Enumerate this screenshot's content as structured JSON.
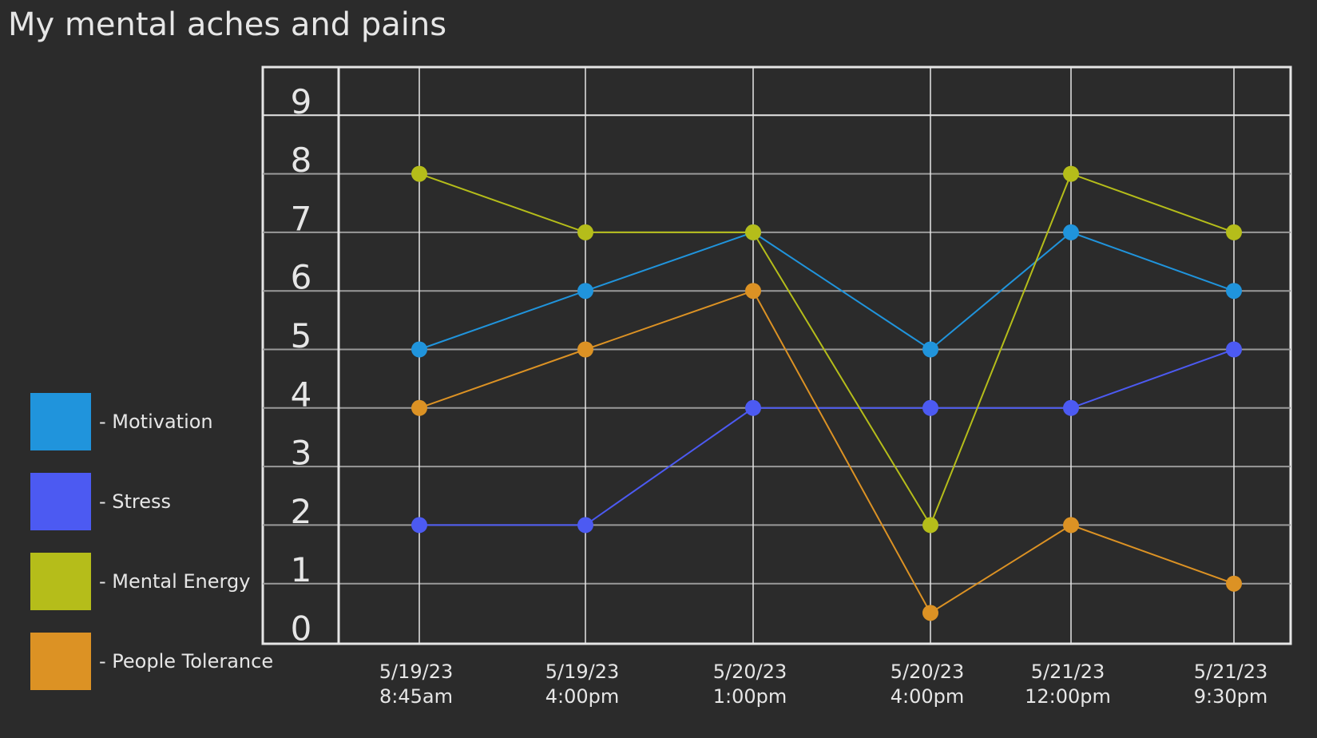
{
  "chart_data": {
    "type": "line",
    "title": "My mental aches and pains",
    "xlabel": "",
    "ylabel": "",
    "categories": [
      [
        "5/19/23",
        "8:45am"
      ],
      [
        "5/19/23",
        "4:00pm"
      ],
      [
        "5/20/23",
        "1:00pm"
      ],
      [
        "5/20/23",
        "4:00pm"
      ],
      [
        "5/21/23",
        "12:00pm"
      ],
      [
        "5/21/23",
        "9:30pm"
      ]
    ],
    "yticks": [
      0,
      1,
      2,
      3,
      4,
      5,
      6,
      7,
      8,
      9
    ],
    "ylim": [
      0,
      9
    ],
    "grid": true,
    "legend_position": "left",
    "series": [
      {
        "name": "- Motivation",
        "color": "#2094dc",
        "values": [
          5,
          6,
          7,
          5,
          7,
          6
        ]
      },
      {
        "name": "- Stress",
        "color": "#4c5af2",
        "values": [
          2,
          2,
          4,
          4,
          4,
          5
        ]
      },
      {
        "name": "- Mental Energy",
        "color": "#b5bd1a",
        "values": [
          8,
          7,
          7,
          2,
          8,
          7
        ]
      },
      {
        "name": "- People Tolerance",
        "color": "#dc9224",
        "values": [
          4,
          5,
          6,
          0.5,
          2,
          1
        ]
      }
    ]
  }
}
